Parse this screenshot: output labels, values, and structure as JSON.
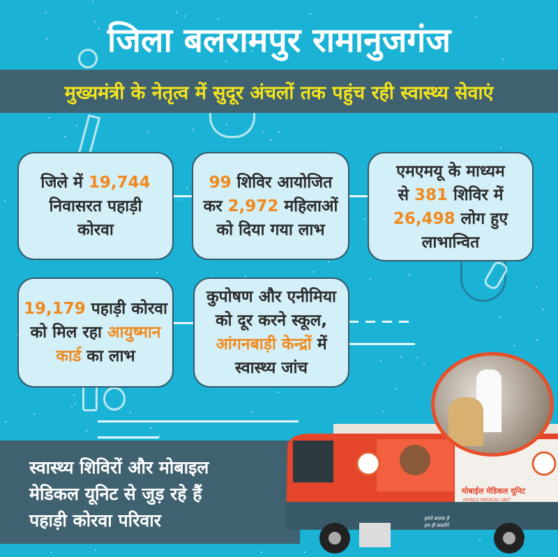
{
  "header": {
    "title": "जिला बलरामपुर रामानुजगंज",
    "subtitle": "मुख्यमंत्री के नेतृत्व में सुदूर अंचलों तक पहुंच रही स्वास्थ्य सेवाएं"
  },
  "colors": {
    "background": "#1bb3d5",
    "banner": "#40616f",
    "banner_text": "#f4e41c",
    "highlight": "#f08a1e",
    "box": "#d3eff7"
  },
  "cards": [
    {
      "lines": [
        [
          "जिले में ",
          ""
        ],
        [
          "19,744",
          "hl"
        ]
      ],
      "l2": "निवासरत पहाड़ी",
      "l3": "कोरवा"
    },
    {
      "a": "99",
      "b": " शिविर आयोजित",
      "c": "कर ",
      "d": "2,972",
      "e": " महिलाओं",
      "f": "को  दिया गया लाभ"
    },
    {
      "a": "एमएमयू के माध्यम",
      "b": "से ",
      "c": "381",
      "d": " शिविर में",
      "e": "26,498",
      "f": " लोग हुए",
      "g": "लाभान्वित"
    },
    {
      "a": "19,179",
      "b": " पहाड़ी कोरवा",
      "c": "को मिल रहा ",
      "d": "आयुष्मान",
      "e": "कार्ड",
      "f": " का लाभ"
    },
    {
      "a": "कुपोषण और एनीमिया",
      "b": "को दूर करने स्कूल,",
      "c": "आंगनबाड़ी केन्द्रों",
      "d": " में",
      "e": "स्वास्थ्य जांच"
    }
  ],
  "card1": {
    "a": "जिले में ",
    "b": "19,744",
    "c": "निवासरत पहाड़ी",
    "d": "कोरवा"
  },
  "footer": {
    "lines": [
      "स्वास्थ्य शिविरों और मोबाइल",
      "मेडिकल यूनिट से जुड़ रहे हैं",
      "पहाड़ी कोरवा परिवार"
    ]
  },
  "bus": {
    "label_hi": "मोबाईल मेडिकल यूनिट",
    "label_en": "MOBILE MEDICAL UNIT",
    "slogan1": "हमने बनाया है",
    "slogan2": "हम ही सवारेंगे"
  }
}
